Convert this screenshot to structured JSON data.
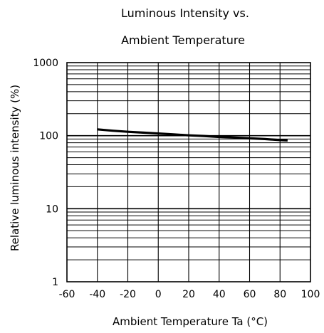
{
  "chart_data": {
    "type": "line",
    "title": [
      "Luminous Intensity vs.",
      "Ambient Temperature"
    ],
    "xlabel": "Ambient Temperature Ta (°C)",
    "ylabel": "Relative luminous intensity  (%)",
    "xlim": [
      -60,
      100
    ],
    "ylim": [
      1,
      1000
    ],
    "y_scale": "log",
    "grid": true,
    "x_ticks": [
      "-60",
      "-40",
      "-20",
      "0",
      "20",
      "40",
      "60",
      "80",
      "100"
    ],
    "y_ticks": [
      "1",
      "10",
      "100",
      "1000"
    ],
    "series": [
      {
        "x": [
          -40,
          -30,
          -20,
          -10,
          0,
          10,
          20,
          30,
          40,
          50,
          60,
          70,
          80,
          85
        ],
        "y": [
          122,
          117,
          113,
          110,
          107,
          104,
          101,
          99,
          96,
          94,
          92,
          90,
          87,
          86
        ],
        "color": "#000000"
      }
    ]
  }
}
